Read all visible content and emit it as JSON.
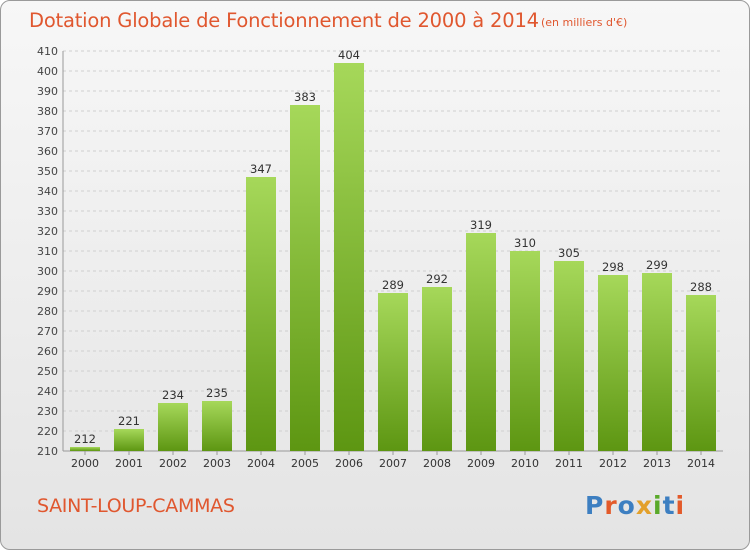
{
  "header": {
    "title": "Dotation Globale de Fonctionnement de 2000 à 2014",
    "unit": "(en milliers d'€)"
  },
  "footer": {
    "commune": "SAINT-LOUP-CAMMAS",
    "logo_text": "Proxiti"
  },
  "colors": {
    "title": "#e0572f",
    "bar_top": "#a6d85a",
    "bar_bottom": "#5d9612",
    "grid": "#cfcfcf"
  },
  "chart_data": {
    "type": "bar",
    "title": "Dotation Globale de Fonctionnement de 2000 à 2014",
    "categories": [
      "2000",
      "2001",
      "2002",
      "2003",
      "2004",
      "2005",
      "2006",
      "2007",
      "2008",
      "2009",
      "2010",
      "2011",
      "2012",
      "2013",
      "2014"
    ],
    "values": [
      212,
      221,
      234,
      235,
      347,
      383,
      404,
      289,
      292,
      319,
      310,
      305,
      298,
      299,
      288
    ],
    "ylim": [
      210,
      410
    ],
    "ytick_step": 10,
    "grid": true,
    "xlabel": "",
    "ylabel": ""
  }
}
